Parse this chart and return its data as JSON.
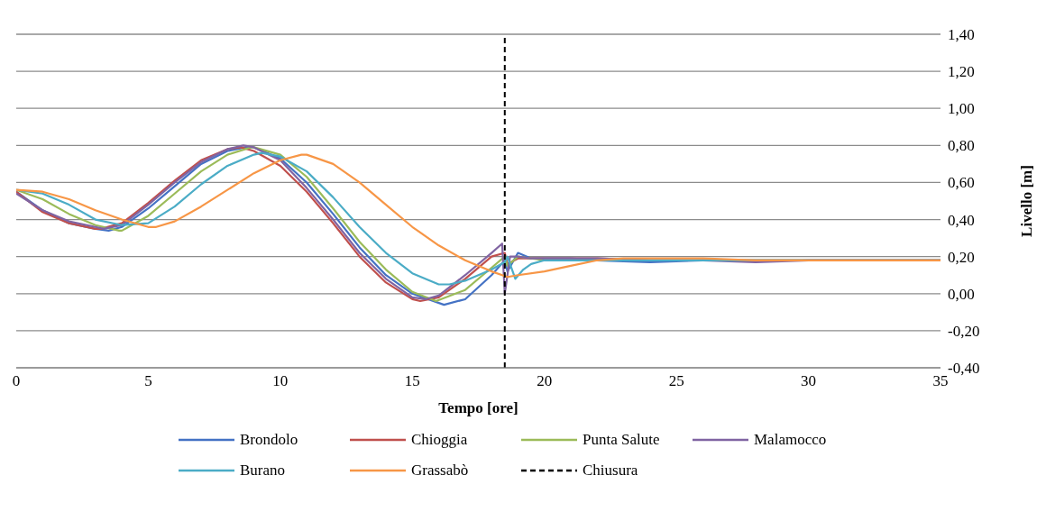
{
  "chart_data": {
    "type": "line",
    "xlabel": "Tempo [ore]",
    "ylabel": "Livello [m]",
    "xlim": [
      0,
      35
    ],
    "xticks": [
      0,
      5,
      10,
      15,
      20,
      25,
      30,
      35
    ],
    "ylim": [
      -0.4,
      1.4
    ],
    "yticks": [
      {
        "value": -0.4,
        "label": "-0,40"
      },
      {
        "value": -0.2,
        "label": "-0,20"
      },
      {
        "value": 0,
        "label": "0,00"
      },
      {
        "value": 0.2,
        "label": "0,20"
      },
      {
        "value": 0.4,
        "label": "0,40"
      },
      {
        "value": 0.6,
        "label": "0,60"
      },
      {
        "value": 0.8,
        "label": "0,80"
      },
      {
        "value": 1.0,
        "label": "1,00"
      },
      {
        "value": 1.2,
        "label": "1,20"
      },
      {
        "value": 1.4,
        "label": "1,40"
      }
    ],
    "grid": "y",
    "legend": "bottom",
    "marker": "none",
    "line_style": "solid",
    "ref_lines": [
      {
        "axis": "x",
        "value": 18.5,
        "label": "Chiusura",
        "color": "#000000",
        "line_style": "dashed"
      }
    ],
    "series": [
      {
        "name": "Brondolo",
        "color": "#4472c4",
        "x": [
          0,
          1,
          2,
          3,
          3.5,
          4,
          5,
          6,
          7,
          8,
          8.7,
          9,
          10,
          11,
          12,
          13,
          14,
          15,
          16.2,
          17,
          18,
          18.5,
          18.6,
          19,
          19.5,
          20,
          21,
          22,
          24,
          26,
          28,
          30,
          35
        ],
        "values": [
          0.55,
          0.45,
          0.38,
          0.35,
          0.34,
          0.36,
          0.46,
          0.58,
          0.7,
          0.77,
          0.79,
          0.79,
          0.73,
          0.6,
          0.43,
          0.25,
          0.1,
          0.0,
          -0.06,
          -0.03,
          0.1,
          0.18,
          0.12,
          0.22,
          0.19,
          0.19,
          0.19,
          0.18,
          0.17,
          0.18,
          0.18,
          0.18,
          0.18
        ]
      },
      {
        "name": "Chioggia",
        "color": "#c0504d",
        "x": [
          0,
          1,
          2,
          3,
          3.2,
          4,
          5,
          6,
          7,
          8,
          8.5,
          9,
          10,
          11,
          12,
          13,
          14,
          15,
          15.3,
          16,
          17,
          18,
          18.5,
          18.6,
          19,
          19.5,
          20,
          21,
          22,
          24,
          26,
          28,
          30,
          35
        ],
        "values": [
          0.55,
          0.44,
          0.38,
          0.35,
          0.35,
          0.38,
          0.49,
          0.61,
          0.72,
          0.78,
          0.79,
          0.77,
          0.69,
          0.55,
          0.38,
          0.2,
          0.06,
          -0.03,
          -0.04,
          -0.02,
          0.08,
          0.2,
          0.22,
          0.16,
          0.19,
          0.19,
          0.19,
          0.19,
          0.19,
          0.18,
          0.18,
          0.18,
          0.18,
          0.18
        ]
      },
      {
        "name": "Punta Salute",
        "color": "#9bbb59",
        "x": [
          0,
          1,
          2,
          3,
          3.9,
          4,
          5,
          6,
          7,
          8,
          8.9,
          9,
          10,
          11,
          12,
          13,
          14,
          15,
          15.9,
          17,
          18,
          18.5,
          18.6,
          19,
          19.5,
          20,
          22,
          24,
          26,
          28,
          30,
          35
        ],
        "values": [
          0.56,
          0.51,
          0.43,
          0.37,
          0.34,
          0.34,
          0.42,
          0.54,
          0.66,
          0.75,
          0.79,
          0.79,
          0.75,
          0.63,
          0.46,
          0.28,
          0.13,
          0.01,
          -0.04,
          0.02,
          0.14,
          0.2,
          0.15,
          0.2,
          0.19,
          0.18,
          0.18,
          0.18,
          0.18,
          0.18,
          0.18,
          0.18
        ]
      },
      {
        "name": "Malamocco",
        "color": "#8064a2",
        "x": [
          0,
          1,
          2,
          3,
          3.3,
          4,
          5,
          6,
          7,
          8,
          8.6,
          9,
          10,
          11,
          12,
          13,
          14,
          15,
          15.5,
          16,
          17,
          18,
          18.4,
          18.5,
          18.7,
          19,
          19.5,
          20,
          21,
          22,
          24,
          26,
          28,
          30,
          35
        ],
        "values": [
          0.54,
          0.45,
          0.39,
          0.36,
          0.35,
          0.37,
          0.48,
          0.6,
          0.71,
          0.78,
          0.8,
          0.79,
          0.72,
          0.57,
          0.4,
          0.22,
          0.08,
          -0.02,
          -0.03,
          -0.01,
          0.1,
          0.22,
          0.27,
          0.0,
          0.2,
          0.2,
          0.19,
          0.19,
          0.19,
          0.19,
          0.18,
          0.18,
          0.17,
          0.18,
          0.18
        ]
      },
      {
        "name": "Burano",
        "color": "#4bacc6",
        "x": [
          0,
          1,
          2,
          3,
          4,
          5,
          6,
          7,
          8,
          9,
          9.3,
          10,
          11,
          12,
          13,
          14,
          15,
          16,
          16.4,
          17,
          18,
          18.5,
          18.6,
          18.9,
          19.2,
          19.5,
          20,
          21,
          22,
          24,
          26,
          28,
          30,
          35
        ],
        "values": [
          0.56,
          0.54,
          0.48,
          0.4,
          0.37,
          0.38,
          0.47,
          0.59,
          0.69,
          0.75,
          0.76,
          0.74,
          0.66,
          0.52,
          0.36,
          0.22,
          0.11,
          0.05,
          0.05,
          0.07,
          0.13,
          0.17,
          0.2,
          0.08,
          0.13,
          0.16,
          0.18,
          0.18,
          0.18,
          0.18,
          0.18,
          0.18,
          0.18,
          0.18
        ]
      },
      {
        "name": "Grassabò",
        "color": "#f79646",
        "x": [
          0,
          1,
          2,
          3,
          4,
          5,
          5.3,
          6,
          7,
          8,
          9,
          10,
          10.8,
          11,
          12,
          13,
          14,
          15,
          16,
          17,
          18,
          18.6,
          19,
          20,
          21,
          22,
          23,
          24,
          26,
          28,
          30,
          35
        ],
        "values": [
          0.56,
          0.55,
          0.51,
          0.45,
          0.4,
          0.36,
          0.36,
          0.39,
          0.47,
          0.56,
          0.65,
          0.72,
          0.75,
          0.75,
          0.7,
          0.6,
          0.48,
          0.36,
          0.26,
          0.18,
          0.12,
          0.09,
          0.1,
          0.12,
          0.15,
          0.18,
          0.19,
          0.19,
          0.19,
          0.18,
          0.18,
          0.18
        ]
      }
    ]
  }
}
